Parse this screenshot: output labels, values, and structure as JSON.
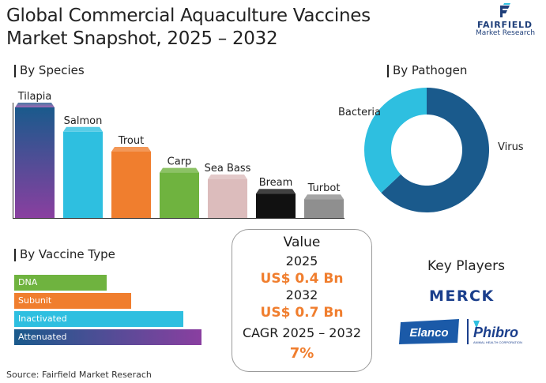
{
  "header": {
    "title_line1": "Global Commercial Aquaculture Vaccines",
    "title_line2": "Market Snapshot, 2025 – 2032",
    "logo_name": "FAIRFIELD",
    "logo_sub": "Market Research"
  },
  "chart_data": [
    {
      "type": "bar",
      "title": "By Species",
      "categories": [
        "Tilapia",
        "Salmon",
        "Trout",
        "Carp",
        "Sea Bass",
        "Bream",
        "Turbot"
      ],
      "values": [
        100,
        78,
        60,
        41,
        35,
        22,
        17
      ],
      "colors": [
        "#5b3f9e",
        "#2ebfe0",
        "#f07e2e",
        "#6fb33f",
        "#dcbcbc",
        "#111111",
        "#8f8f8f"
      ]
    },
    {
      "type": "pie",
      "title": "By Pathogen",
      "categories": [
        "Virus",
        "Bacteria"
      ],
      "values": [
        63,
        37
      ],
      "colors": [
        "#1a5a8c",
        "#2ebfe0"
      ]
    },
    {
      "type": "bar",
      "title": "By Vaccine Type",
      "orientation": "horizontal",
      "categories": [
        "DNA",
        "Subunit",
        "Inactivated",
        "Attenuated"
      ],
      "values": [
        46,
        58,
        84,
        93
      ],
      "colors": [
        "#6fb33f",
        "#f07e2e",
        "#2ebfe0",
        "#3a3f8f"
      ]
    }
  ],
  "value_box": {
    "heading": "Value",
    "year1": "2025",
    "value1": "US$ 0.4 Bn",
    "year2": "2032",
    "value2": "US$ 0.7 Bn",
    "cagr_label": "CAGR 2025 – 2032",
    "cagr_value": "7%",
    "accent": "#f07e2e"
  },
  "key_players": {
    "title": "Key Players",
    "logos": [
      "MERCK",
      "Elanco",
      "Phibro"
    ],
    "phibro_sub": "ANIMAL HEALTH CORPORATION"
  },
  "footer": {
    "source": "Source: Fairfield Market Reserach"
  }
}
